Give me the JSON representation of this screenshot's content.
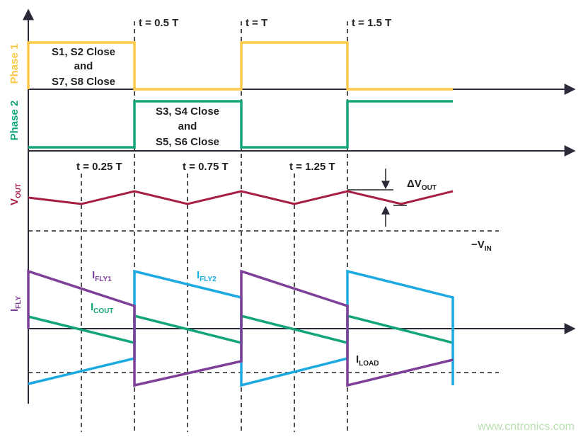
{
  "time_markers": [
    "t = 0.5 T",
    "t = T",
    "t = 1.5 T"
  ],
  "quarter_markers": [
    "t = 0.25 T",
    "t = 0.75 T",
    "t = 1.25 T"
  ],
  "phase_labels": [
    "Phase 1",
    "Phase 2"
  ],
  "phase1_note": [
    "S1, S2 Close",
    "and",
    "S7, S8 Close"
  ],
  "phase2_note": [
    "S3, S4 Close",
    "and",
    "S5, S6 Close"
  ],
  "vout_label": {
    "main": "V",
    "sub": "OUT"
  },
  "delta_vout": {
    "main": "ΔV",
    "sub": "OUT"
  },
  "vin_label": {
    "main": "−V",
    "sub": "IN"
  },
  "ifly_label": {
    "main": "I",
    "sub": "FLY"
  },
  "ifly1_label": {
    "main": "I",
    "sub": "FLY1"
  },
  "ifly2_label": {
    "main": "I",
    "sub": "FLY2"
  },
  "icout_label": {
    "main": "I",
    "sub": "COUT"
  },
  "iload_label": {
    "main": "I",
    "sub": "LOAD"
  },
  "watermark": "www.cntronics.com"
}
